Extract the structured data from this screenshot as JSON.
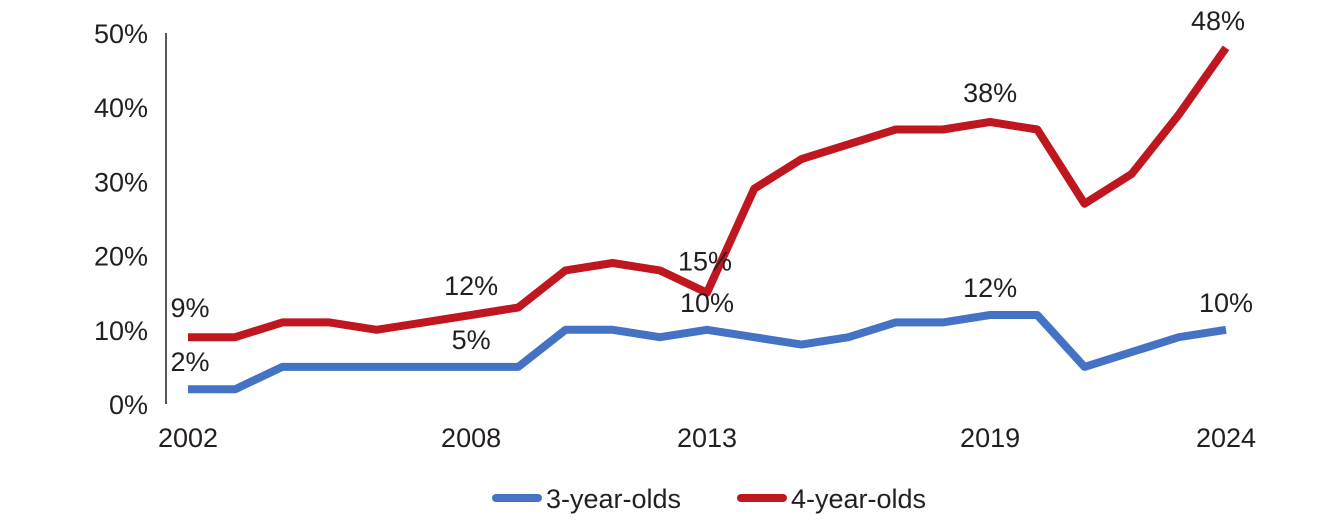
{
  "chart_data": {
    "type": "line",
    "x": [
      2002,
      2003,
      2004,
      2005,
      2006,
      2007,
      2008,
      2009,
      2010,
      2011,
      2012,
      2013,
      2014,
      2015,
      2016,
      2017,
      2018,
      2019,
      2020,
      2021,
      2022,
      2023,
      2024
    ],
    "x_tick_labels": [
      "2002",
      "2008",
      "2013",
      "2019",
      "2024"
    ],
    "x_ticks": [
      2002,
      2008,
      2013,
      2019,
      2024
    ],
    "ylim": [
      0,
      50
    ],
    "y_ticks": [
      0,
      10,
      20,
      30,
      40,
      50
    ],
    "y_tick_labels": [
      "0%",
      "10%",
      "20%",
      "30%",
      "40%",
      "50%"
    ],
    "grid": false,
    "legend_position": "bottom",
    "series": [
      {
        "name": "3-year-olds",
        "color": "#4472c4",
        "values": [
          2,
          2,
          5,
          5,
          5,
          5,
          5,
          5,
          10,
          10,
          9,
          10,
          9,
          8,
          9,
          11,
          11,
          12,
          12,
          5,
          7,
          9,
          10
        ],
        "labels": [
          {
            "x": 2002,
            "text": "2%"
          },
          {
            "x": 2008,
            "text": "5%"
          },
          {
            "x": 2013,
            "text": "10%"
          },
          {
            "x": 2019,
            "text": "12%"
          },
          {
            "x": 2024,
            "text": "10%"
          }
        ]
      },
      {
        "name": "4-year-olds",
        "color": "#c0161f",
        "values": [
          9,
          9,
          11,
          11,
          10,
          11,
          12,
          13,
          18,
          19,
          18,
          15,
          29,
          33,
          35,
          37,
          37,
          38,
          37,
          27,
          31,
          39,
          48
        ],
        "labels": [
          {
            "x": 2002,
            "text": "9%"
          },
          {
            "x": 2008,
            "text": "12%"
          },
          {
            "x": 2013,
            "text": "15%"
          },
          {
            "x": 2019,
            "text": "38%"
          },
          {
            "x": 2024,
            "text": "48%"
          }
        ]
      }
    ]
  }
}
